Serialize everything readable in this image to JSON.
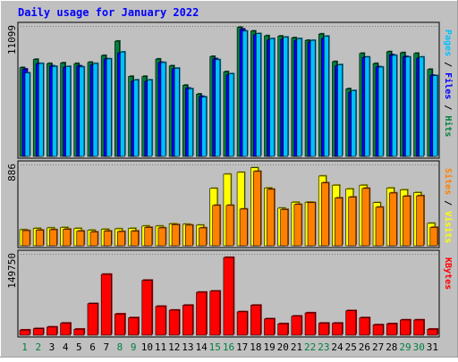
{
  "chart_data": {
    "type": "bar",
    "title": "Daily usage for January 2022",
    "categories": [
      "1",
      "2",
      "3",
      "4",
      "5",
      "6",
      "7",
      "8",
      "9",
      "10",
      "11",
      "12",
      "13",
      "14",
      "15",
      "16",
      "17",
      "18",
      "19",
      "20",
      "21",
      "22",
      "23",
      "24",
      "25",
      "26",
      "27",
      "28",
      "29",
      "30",
      "31"
    ],
    "weekend_days": [
      "1",
      "2",
      "8",
      "9",
      "15",
      "16",
      "22",
      "23",
      "29",
      "30"
    ],
    "panels": [
      {
        "name": "hits-files-pages",
        "max_label": "11099",
        "ylim": [
          0,
          11099
        ],
        "right_label": [
          "Pages",
          "Files",
          "Hits"
        ],
        "series": [
          {
            "name": "Hits",
            "color": "#008040",
            "values": [
              7550,
              8250,
              7900,
              7950,
              7900,
              8000,
              8580,
              9800,
              6800,
              6800,
              8280,
              7700,
              6050,
              5300,
              8500,
              7200,
              10980,
              10660,
              10260,
              10230,
              10090,
              9870,
              10410,
              8060,
              5750,
              8760,
              7900,
              8900,
              8820,
              8760,
              7400
            ]
          },
          {
            "name": "Files",
            "color": "#0000ff",
            "values": [
              7420,
              7890,
              7690,
              7590,
              7690,
              7780,
              8290,
              8800,
              6390,
              6390,
              7990,
              7460,
              5800,
              5100,
              8300,
              6940,
              10820,
              10340,
              9900,
              9960,
              9870,
              9700,
              10030,
              7700,
              5450,
              8420,
              7620,
              8640,
              8490,
              8350,
              6890
            ]
          },
          {
            "name": "Pages",
            "color": "#00c0ff",
            "values": [
              7100,
              7900,
              7650,
              7650,
              7610,
              7900,
              8290,
              8880,
              6500,
              6500,
              7980,
              7500,
              5750,
              5050,
              8220,
              7030,
              10660,
              10440,
              10020,
              10140,
              10020,
              9870,
              10220,
              7800,
              5600,
              8450,
              7600,
              8590,
              8450,
              8450,
              6870
            ]
          }
        ]
      },
      {
        "name": "visits-sites",
        "max_label": "886",
        "ylim": [
          0,
          886
        ],
        "right_label": [
          "Sites",
          "Visits"
        ],
        "series": [
          {
            "name": "Visits",
            "color": "#ffff00",
            "values": [
              175,
              190,
              195,
              200,
              190,
              170,
              180,
              185,
              190,
              215,
              215,
              240,
              235,
              225,
              625,
              780,
              800,
              850,
              630,
              410,
              475,
              475,
              760,
              660,
              620,
              660,
              470,
              630,
              610,
              580,
              245
            ]
          },
          {
            "name": "Sites",
            "color": "#ff8000",
            "values": [
              165,
              170,
              175,
              180,
              160,
              150,
              160,
              155,
              160,
              200,
              195,
              230,
              225,
              195,
              440,
              440,
              400,
              810,
              615,
              395,
              450,
              470,
              685,
              520,
              530,
              625,
              420,
              575,
              540,
              545,
              200
            ]
          }
        ]
      },
      {
        "name": "kbytes",
        "max_label": "149750",
        "ylim": [
          0,
          149750
        ],
        "right_label": [
          "KBytes"
        ],
        "series": [
          {
            "name": "KBytes",
            "color": "#ff0000",
            "values": [
              9500,
              12000,
              15000,
              22000,
              11000,
              58000,
              112000,
              39000,
              32000,
              101000,
              53000,
              46000,
              55000,
              79000,
              81000,
              143000,
              43000,
              55000,
              30000,
              21000,
              35000,
              41000,
              22000,
              22000,
              45000,
              32000,
              19000,
              21000,
              28000,
              28000,
              11000
            ]
          }
        ]
      }
    ]
  }
}
